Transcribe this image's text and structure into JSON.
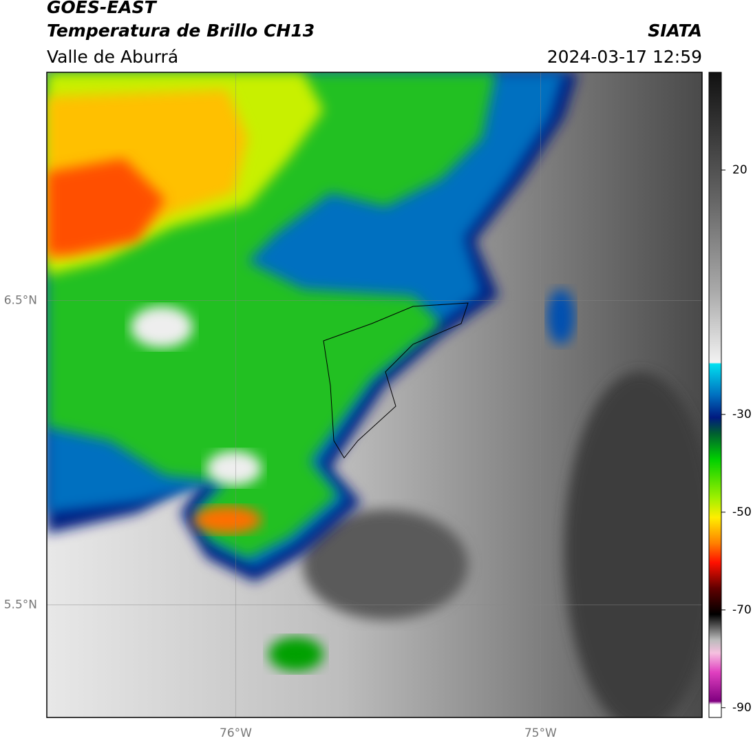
{
  "header": {
    "title": "GOES-EAST",
    "subtitle": "Temperatura de Brillo CH13",
    "region": "Valle de Aburrá",
    "source": "SIATA",
    "timestamp": "2024-03-17 12:59"
  },
  "map": {
    "xlim": [
      -76.62,
      -74.47
    ],
    "ylim": [
      5.13,
      7.25
    ],
    "xticks": [
      {
        "value": -76,
        "label": "76°W"
      },
      {
        "value": -75,
        "label": "75°W"
      }
    ],
    "yticks": [
      {
        "value": 6.5,
        "label": "6.5°N"
      },
      {
        "value": 5.5,
        "label": "5.5°N"
      }
    ],
    "grid": true
  },
  "colorbar": {
    "lim": [
      -92,
      40
    ],
    "ticks": [
      20,
      -30,
      -50,
      -70,
      -90
    ]
  }
}
